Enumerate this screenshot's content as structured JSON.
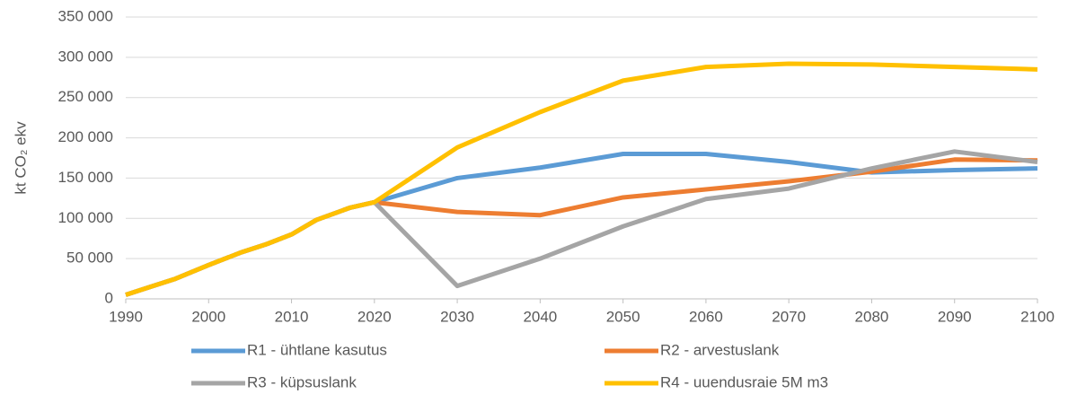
{
  "chart_data": {
    "type": "line",
    "ylabel": "kt CO₂ ekv",
    "x": [
      1990,
      1993,
      1996,
      2000,
      2004,
      2007,
      2010,
      2013,
      2017,
      2020,
      2030,
      2040,
      2050,
      2060,
      2070,
      2080,
      2090,
      2100
    ],
    "series": [
      {
        "name": "R1 - ühtlane kasutus",
        "color": "#5b9bd5",
        "values": [
          5000,
          15000,
          25000,
          42000,
          58000,
          68000,
          80000,
          98000,
          113000,
          120000,
          150000,
          163000,
          180000,
          180000,
          170000,
          157000,
          160000,
          162000
        ]
      },
      {
        "name": "R2 - arvestuslank",
        "color": "#ed7d31",
        "values": [
          5000,
          15000,
          25000,
          42000,
          58000,
          68000,
          80000,
          98000,
          113000,
          120000,
          108000,
          104000,
          126000,
          136000,
          146000,
          158000,
          173000,
          172000
        ]
      },
      {
        "name": "R3 - küpsuslank",
        "color": "#a5a5a5",
        "values": [
          5000,
          15000,
          25000,
          42000,
          58000,
          68000,
          80000,
          98000,
          113000,
          120000,
          16000,
          50000,
          90000,
          124000,
          137000,
          162000,
          183000,
          170000
        ]
      },
      {
        "name": "R4 - uuendusraie 5M m3",
        "color": "#ffc000",
        "values": [
          5000,
          15000,
          25000,
          42000,
          58000,
          68000,
          80000,
          98000,
          113000,
          120000,
          188000,
          232000,
          271000,
          288000,
          292000,
          291000,
          288000,
          285000
        ]
      }
    ],
    "xlim": [
      1990,
      2100
    ],
    "xticks": [
      1990,
      2000,
      2010,
      2020,
      2030,
      2040,
      2050,
      2060,
      2070,
      2080,
      2090,
      2100
    ],
    "ylim": [
      0,
      350000
    ],
    "yticks": [
      0,
      {
        "value": 50000,
        "label": "50 000"
      },
      {
        "value": 100000,
        "label": "100 000"
      },
      {
        "value": 150000,
        "label": "150 000"
      },
      {
        "value": 200000,
        "label": "200 000"
      },
      {
        "value": 250000,
        "label": "250 000"
      },
      {
        "value": 300000,
        "label": "300 000"
      },
      {
        "value": 350000,
        "label": "350 000"
      }
    ],
    "grid": true,
    "legend": "bottom"
  }
}
